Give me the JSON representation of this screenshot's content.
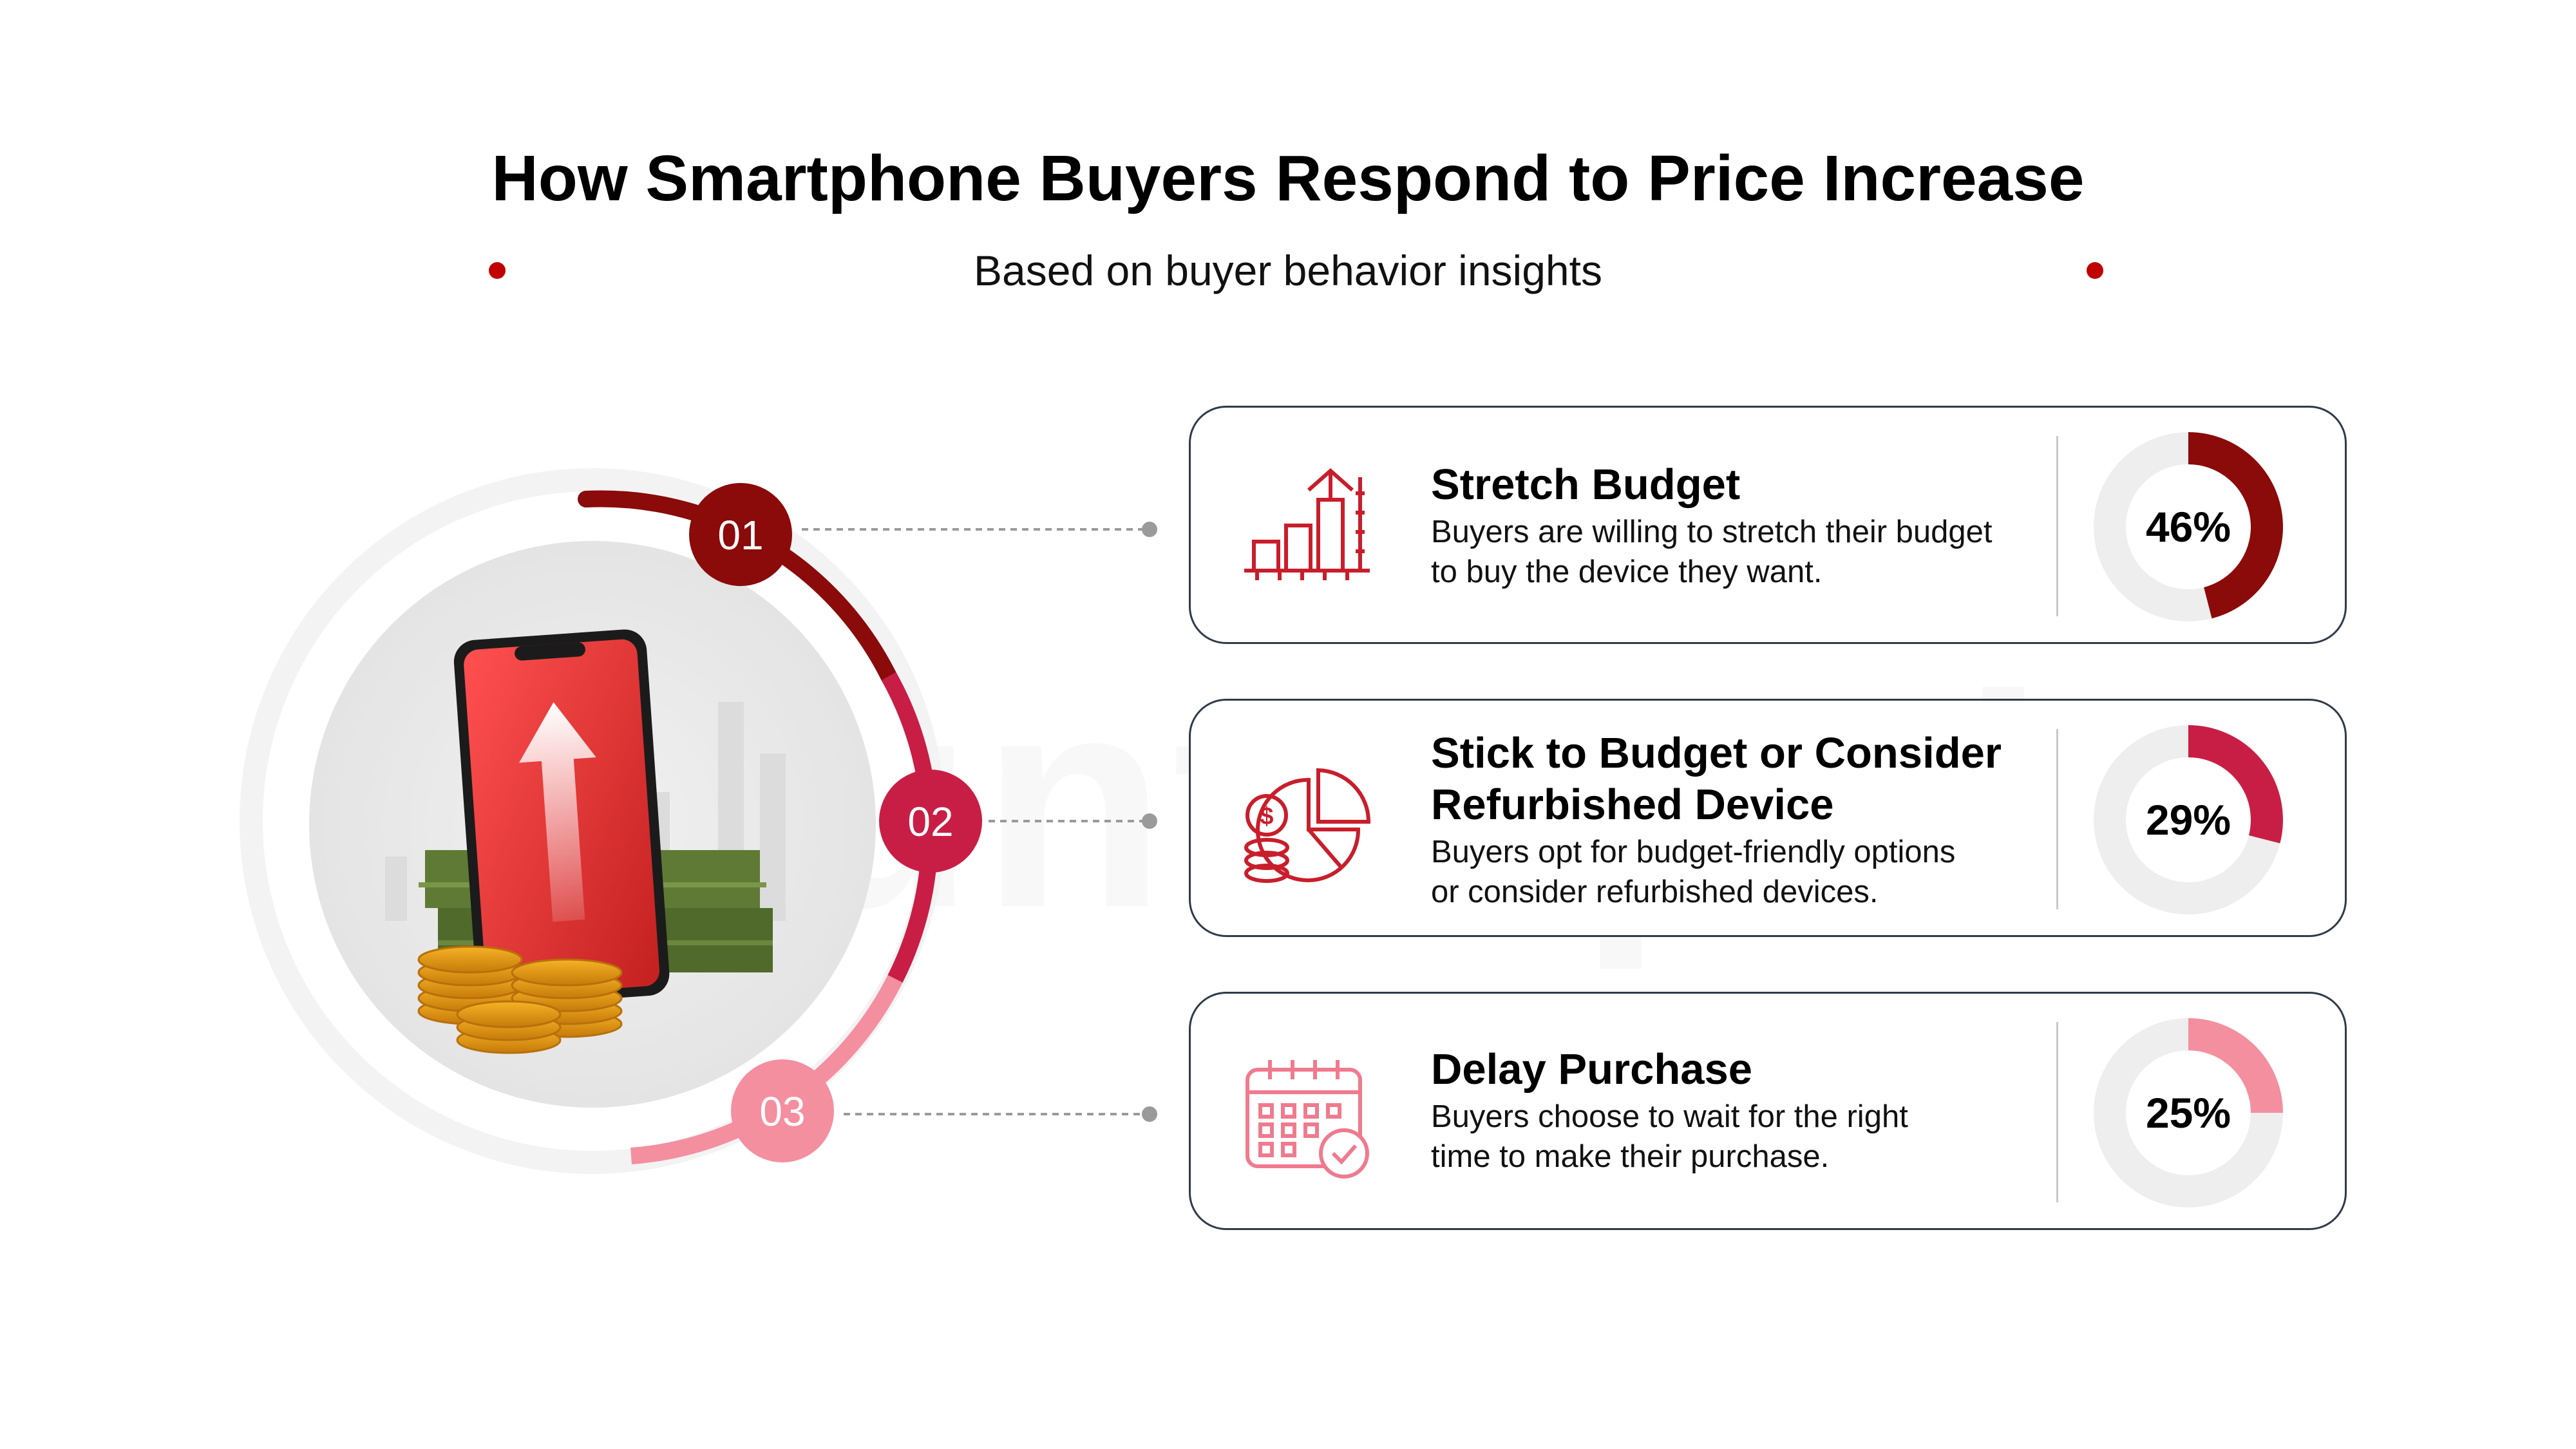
{
  "header": {
    "title": "How Smartphone Buyers Respond to Price Increase",
    "subtitle": "Based on buyer behavior insights"
  },
  "watermark": "Counterpoint",
  "steps": [
    {
      "number": "01",
      "heading": "Stretch Budget",
      "desc1": "Buyers are willing to stretch their budget",
      "desc2": "to buy the device they want.",
      "value": 46,
      "label": "46%",
      "color": "#8b0a0a",
      "icon": "bar-chart-growth-icon"
    },
    {
      "number": "02",
      "heading1": "Stick to Budget or Consider",
      "heading2": "Refurbished Device",
      "desc1": "Buyers opt for budget-friendly options",
      "desc2": "or consider refurbished devices.",
      "value": 29,
      "label": "29%",
      "color": "#c81e45",
      "icon": "coins-pie-chart-icon"
    },
    {
      "number": "03",
      "heading": "Delay Purchase",
      "desc1": "Buyers choose to wait for the right",
      "desc2": "time to make their purchase.",
      "value": 25,
      "label": "25%",
      "color": "#f48fa0",
      "icon": "calendar-check-icon"
    }
  ],
  "chart_data": {
    "type": "pie",
    "categories": [
      "Stretch Budget",
      "Stick to Budget or Consider Refurbished Device",
      "Delay Purchase"
    ],
    "values": [
      46,
      29,
      25
    ],
    "unit": "%",
    "title": "How Smartphone Buyers Respond to Price Increase",
    "subtitle": "Based on buyer behavior insights"
  },
  "colors": {
    "dark_red": "#8b0a0a",
    "crimson": "#c81e45",
    "pink": "#f48fa0",
    "track": "#eeeeee",
    "card_border": "#2f3b4a"
  }
}
